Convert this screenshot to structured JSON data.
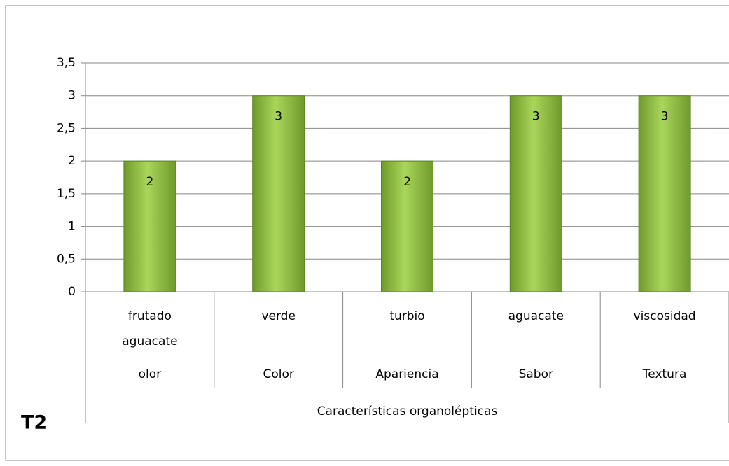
{
  "chart_data": {
    "type": "bar",
    "categories": [
      "frutado aguacate",
      "verde",
      "turbio",
      "aguacate",
      "viscosidad"
    ],
    "groups": [
      "olor",
      "Color",
      "Apariencia",
      "Sabor",
      "Textura"
    ],
    "x_label": "Características organolépticas",
    "annotation": "T2",
    "values": [
      2,
      3,
      2,
      3,
      3
    ],
    "color": "#92c83e",
    "ylim": [
      0,
      3.5
    ],
    "yticks": [
      0,
      {
        "value": 0.5,
        "label": "0,5"
      },
      1,
      {
        "value": 1.5,
        "label": "1,5"
      },
      2,
      {
        "value": 2.5,
        "label": "2,5"
      },
      3,
      {
        "value": 3.5,
        "label": "3,5"
      }
    ],
    "grid": true
  }
}
